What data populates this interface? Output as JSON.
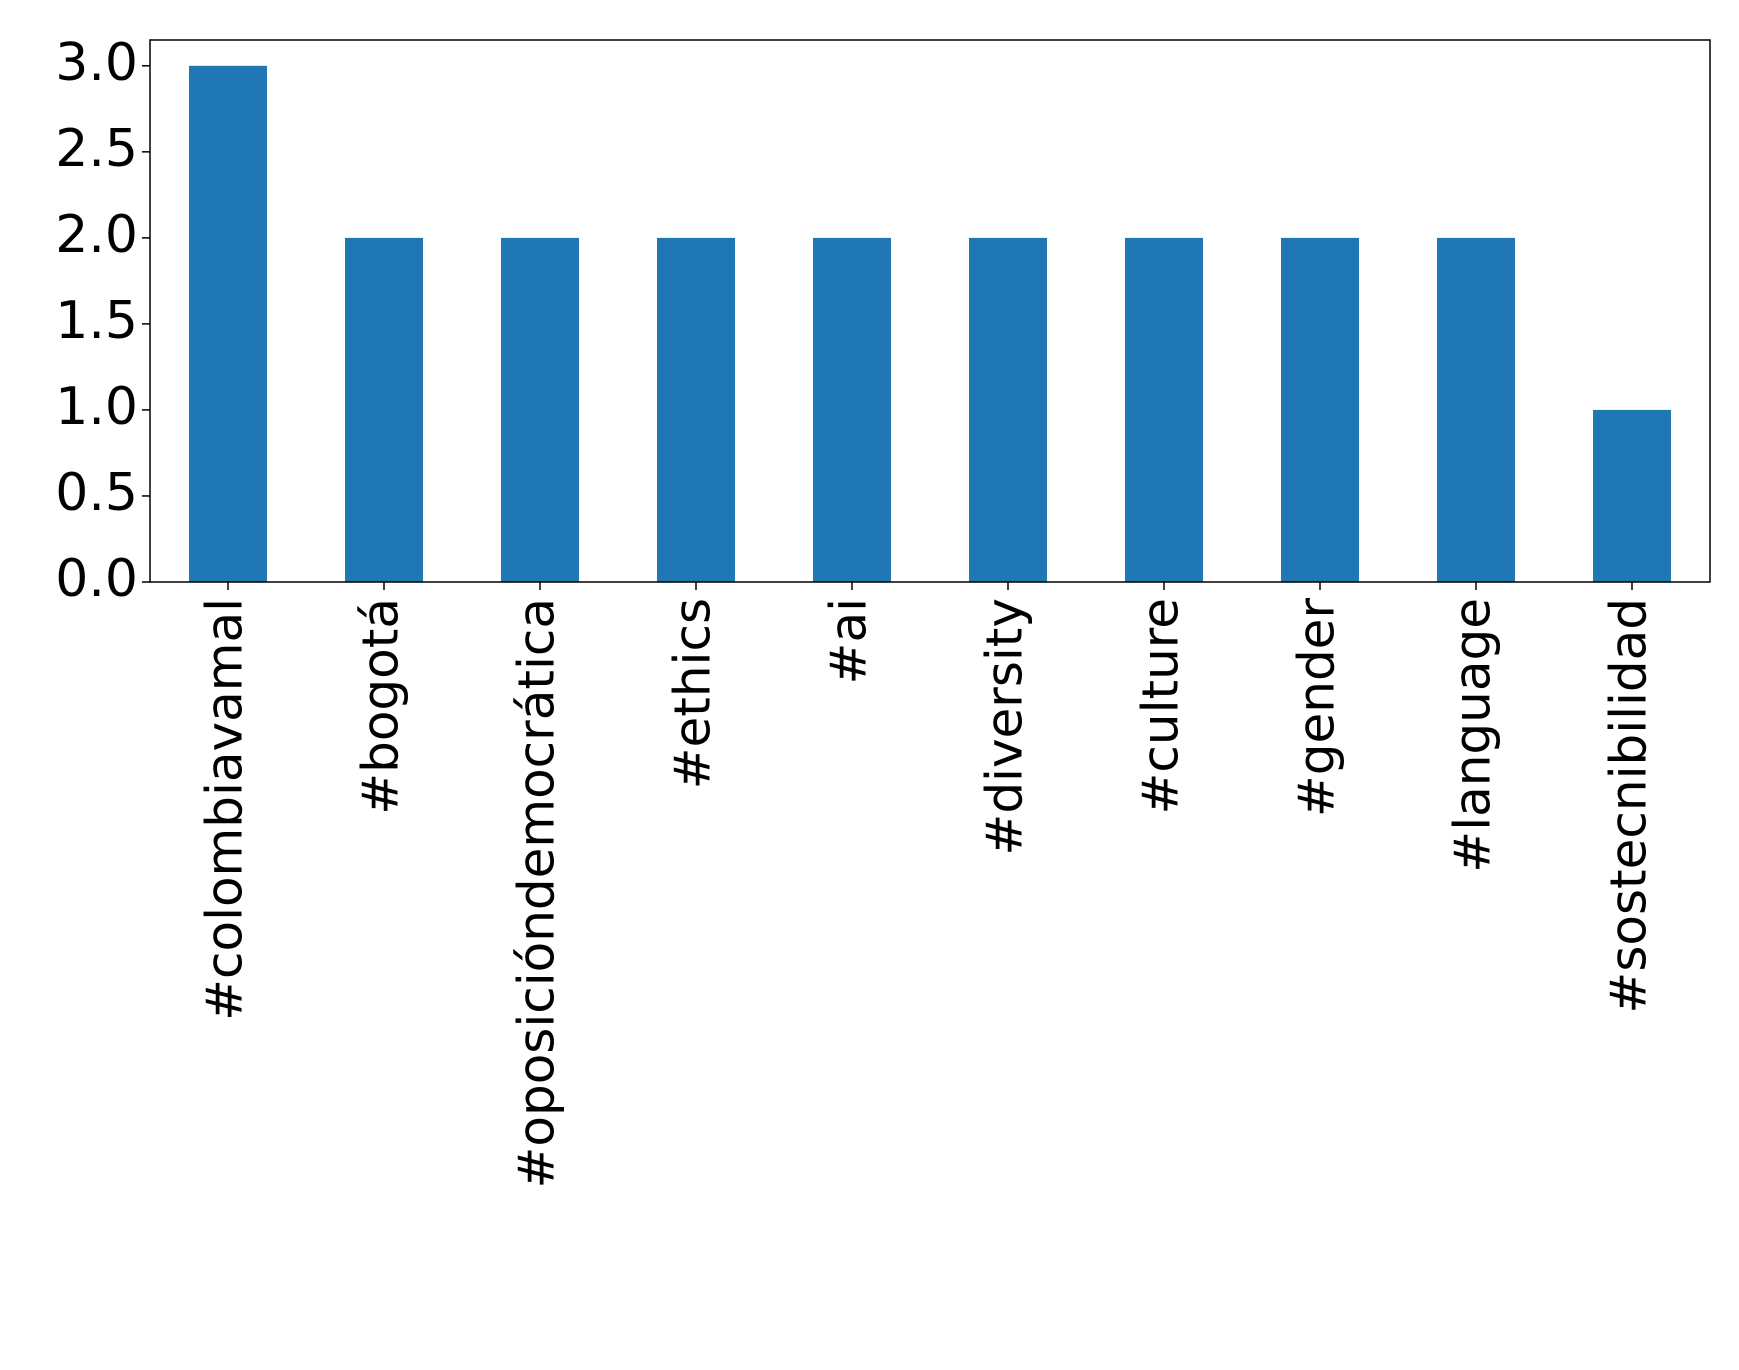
{
  "chart_data": {
    "type": "bar",
    "title": "",
    "xlabel": "",
    "ylabel": "",
    "categories": [
      "#colombiavamal",
      "#bogotá",
      "#oposicióndemocrática",
      "#ethics",
      "#ai",
      "#diversity",
      "#culture",
      "#gender",
      "#language",
      "#sostecnibilidad"
    ],
    "values": [
      3,
      2,
      2,
      2,
      2,
      2,
      2,
      2,
      2,
      1
    ],
    "ylim": [
      0,
      3.15
    ],
    "yticks": [
      "0.0",
      "0.5",
      "1.0",
      "1.5",
      "2.0",
      "2.5",
      "3.0"
    ],
    "ytick_values": [
      0,
      0.5,
      1.0,
      1.5,
      2.0,
      2.5,
      3.0
    ],
    "xtick_rotation": "vertical",
    "grid": false,
    "legend": "none",
    "bar_color": "#1f77b4"
  }
}
